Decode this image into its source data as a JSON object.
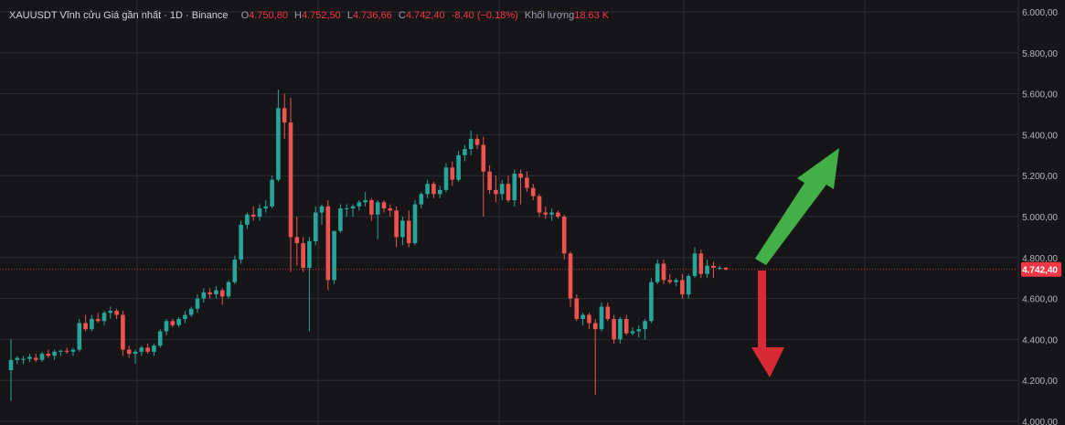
{
  "legend": {
    "title": "XAUUSDT Vĩnh cửu Giá gần nhất · 1D · Binance",
    "open_label": "O",
    "open": "4.750,80",
    "high_label": "H",
    "high": "4.752,50",
    "low_label": "L",
    "low": "4.736,66",
    "close_label": "C",
    "close": "4.742,40",
    "change": "-8,40 (−0.18%)",
    "volume_label": "Khối lượng",
    "volume": "18.63 K"
  },
  "last_price_label": "4.742,40",
  "colors": {
    "background": "#161619",
    "up": "#26a69a",
    "down": "#ef5350",
    "grid": "#2a2e39",
    "text": "#b2b5be",
    "price_tag": "#f23645",
    "arrow_up": "#43b047",
    "arrow_down": "#d62a34"
  },
  "chart_data": {
    "type": "candlestick",
    "title": "XAUUSDT Vĩnh cửu Giá gần nhất · 1D · Binance",
    "ylim": [
      4000,
      6000
    ],
    "y_ticks": [
      {
        "value": 4000,
        "label": "4.000,00"
      },
      {
        "value": 4200,
        "label": "4.200,00"
      },
      {
        "value": 4400,
        "label": "4.400,00"
      },
      {
        "value": 4600,
        "label": "4.600,00"
      },
      {
        "value": 4800,
        "label": "4.800,00"
      },
      {
        "value": 5000,
        "label": "5.000,00"
      },
      {
        "value": 5200,
        "label": "5.200,00"
      },
      {
        "value": 5400,
        "label": "5.400,00"
      },
      {
        "value": 5600,
        "label": "5.600,00"
      },
      {
        "value": 5800,
        "label": "5.800,00"
      },
      {
        "value": 6000,
        "label": "6.000,00"
      }
    ],
    "last_price": 4742.4,
    "grid": true,
    "candles": [
      [
        4250,
        4400,
        4100,
        4300
      ],
      [
        4300,
        4320,
        4280,
        4310
      ],
      [
        4300,
        4320,
        4280,
        4305
      ],
      [
        4305,
        4330,
        4290,
        4315
      ],
      [
        4310,
        4330,
        4290,
        4300
      ],
      [
        4300,
        4340,
        4290,
        4330
      ],
      [
        4330,
        4350,
        4310,
        4320
      ],
      [
        4320,
        4350,
        4300,
        4340
      ],
      [
        4340,
        4350,
        4320,
        4345
      ],
      [
        4345,
        4360,
        4330,
        4340
      ],
      [
        4340,
        4360,
        4320,
        4350
      ],
      [
        4350,
        4500,
        4340,
        4480
      ],
      [
        4480,
        4520,
        4440,
        4450
      ],
      [
        4450,
        4520,
        4440,
        4500
      ],
      [
        4500,
        4530,
        4480,
        4490
      ],
      [
        4490,
        4540,
        4470,
        4530
      ],
      [
        4530,
        4560,
        4500,
        4540
      ],
      [
        4540,
        4550,
        4500,
        4520
      ],
      [
        4520,
        4540,
        4320,
        4350
      ],
      [
        4350,
        4370,
        4310,
        4330
      ],
      [
        4330,
        4350,
        4280,
        4340
      ],
      [
        4340,
        4370,
        4320,
        4360
      ],
      [
        4360,
        4380,
        4330,
        4340
      ],
      [
        4340,
        4380,
        4320,
        4370
      ],
      [
        4370,
        4450,
        4360,
        4440
      ],
      [
        4440,
        4500,
        4420,
        4490
      ],
      [
        4490,
        4500,
        4460,
        4470
      ],
      [
        4470,
        4510,
        4460,
        4500
      ],
      [
        4500,
        4540,
        4480,
        4520
      ],
      [
        4520,
        4560,
        4510,
        4550
      ],
      [
        4550,
        4620,
        4530,
        4600
      ],
      [
        4600,
        4650,
        4580,
        4630
      ],
      [
        4630,
        4650,
        4600,
        4620
      ],
      [
        4620,
        4660,
        4600,
        4640
      ],
      [
        4640,
        4650,
        4570,
        4610
      ],
      [
        4610,
        4690,
        4600,
        4680
      ],
      [
        4680,
        4810,
        4670,
        4790
      ],
      [
        4790,
        4980,
        4770,
        4960
      ],
      [
        4960,
        5020,
        4940,
        5010
      ],
      [
        5010,
        5050,
        4980,
        5000
      ],
      [
        5000,
        5060,
        4980,
        5040
      ],
      [
        5040,
        5080,
        5020,
        5050
      ],
      [
        5050,
        5200,
        5040,
        5180
      ],
      [
        5180,
        5620,
        5170,
        5530
      ],
      [
        5530,
        5600,
        5380,
        5460
      ],
      [
        5460,
        5580,
        4730,
        4900
      ],
      [
        4900,
        5000,
        4760,
        4870
      ],
      [
        4870,
        4900,
        4730,
        4750
      ],
      [
        4750,
        4900,
        4440,
        4880
      ],
      [
        4880,
        5050,
        4860,
        5020
      ],
      [
        5020,
        5060,
        4960,
        5050
      ],
      [
        5050,
        5080,
        4640,
        4690
      ],
      [
        4690,
        4930,
        4670,
        4930
      ],
      [
        4930,
        5060,
        4920,
        5040
      ],
      [
        5040,
        5060,
        5000,
        5040
      ],
      [
        5040,
        5060,
        5000,
        5050
      ],
      [
        5050,
        5080,
        5030,
        5070
      ],
      [
        5070,
        5120,
        5050,
        5080
      ],
      [
        5080,
        5090,
        4980,
        5010
      ],
      [
        5010,
        5080,
        4890,
        5070
      ],
      [
        5070,
        5080,
        5020,
        5040
      ],
      [
        5040,
        5060,
        5000,
        5030
      ],
      [
        5030,
        5050,
        4850,
        4900
      ],
      [
        4900,
        5000,
        4860,
        4980
      ],
      [
        4980,
        5030,
        4850,
        4870
      ],
      [
        4870,
        5080,
        4860,
        5060
      ],
      [
        5060,
        5120,
        5040,
        5110
      ],
      [
        5110,
        5180,
        5090,
        5160
      ],
      [
        5160,
        5170,
        5090,
        5110
      ],
      [
        5110,
        5150,
        5090,
        5130
      ],
      [
        5130,
        5260,
        5120,
        5240
      ],
      [
        5240,
        5270,
        5150,
        5180
      ],
      [
        5180,
        5320,
        5170,
        5300
      ],
      [
        5300,
        5350,
        5270,
        5330
      ],
      [
        5330,
        5420,
        5300,
        5380
      ],
      [
        5380,
        5400,
        5330,
        5350
      ],
      [
        5350,
        5390,
        5000,
        5220
      ],
      [
        5220,
        5250,
        5110,
        5130
      ],
      [
        5130,
        5200,
        5070,
        5110
      ],
      [
        5110,
        5180,
        5080,
        5160
      ],
      [
        5160,
        5200,
        5070,
        5080
      ],
      [
        5080,
        5230,
        5050,
        5210
      ],
      [
        5210,
        5230,
        5060,
        5190
      ],
      [
        5190,
        5220,
        5120,
        5140
      ],
      [
        5140,
        5160,
        5080,
        5100
      ],
      [
        5100,
        5110,
        5000,
        5020
      ],
      [
        5020,
        5050,
        4990,
        5010
      ],
      [
        5010,
        5040,
        4980,
        5020
      ],
      [
        5020,
        5030,
        4990,
        5000
      ],
      [
        5000,
        5010,
        4790,
        4820
      ],
      [
        4820,
        4830,
        4560,
        4600
      ],
      [
        4600,
        4620,
        4490,
        4500
      ],
      [
        4500,
        4530,
        4470,
        4520
      ],
      [
        4520,
        4530,
        4450,
        4480
      ],
      [
        4480,
        4500,
        4130,
        4450
      ],
      [
        4450,
        4580,
        4440,
        4560
      ],
      [
        4560,
        4580,
        4490,
        4500
      ],
      [
        4500,
        4520,
        4380,
        4400
      ],
      [
        4400,
        4510,
        4380,
        4500
      ],
      [
        4500,
        4520,
        4420,
        4430
      ],
      [
        4430,
        4460,
        4420,
        4440
      ],
      [
        4440,
        4470,
        4410,
        4450
      ],
      [
        4450,
        4500,
        4400,
        4490
      ],
      [
        4490,
        4700,
        4480,
        4680
      ],
      [
        4680,
        4790,
        4670,
        4770
      ],
      [
        4770,
        4790,
        4670,
        4690
      ],
      [
        4690,
        4720,
        4670,
        4680
      ],
      [
        4680,
        4700,
        4660,
        4690
      ],
      [
        4690,
        4720,
        4600,
        4620
      ],
      [
        4620,
        4720,
        4600,
        4710
      ],
      [
        4710,
        4850,
        4700,
        4820
      ],
      [
        4820,
        4840,
        4700,
        4720
      ],
      [
        4720,
        4790,
        4700,
        4760
      ],
      [
        4760,
        4780,
        4700,
        4750
      ],
      [
        4750,
        4760,
        4740,
        4750
      ],
      [
        4750.8,
        4752.5,
        4736.66,
        4742.4
      ]
    ]
  }
}
